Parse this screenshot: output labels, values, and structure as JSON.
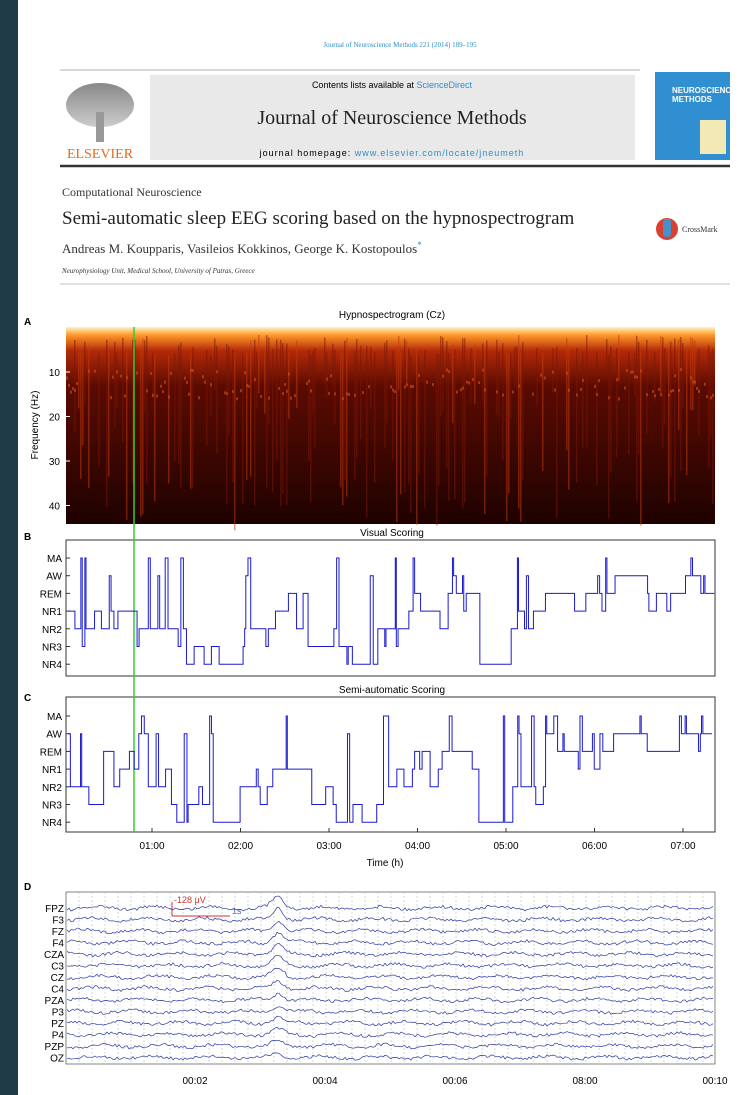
{
  "header": {
    "citation": "Journal of Neuroscience Methods 221 (2014) 189–195",
    "contents_prefix": "Contents lists available at",
    "contents_link": "ScienceDirect",
    "journal": "Journal of Neuroscience Methods",
    "homepage_prefix": "journal homepage:",
    "homepage_link": "www.elsevier.com/locate/jneumeth",
    "publisher": "ELSEVIER",
    "cover_lines": [
      "NEUROSCIENCE",
      "METHODS"
    ]
  },
  "article": {
    "section": "Computational Neuroscience",
    "title": "Semi-automatic sleep EEG scoring based on the hypnospectrogram",
    "authors": "Andreas M. Koupparis, Vasileios Kokkinos, George K. Kostopoulos",
    "author_mark": "*",
    "affiliation": "Neurophysiology Unit, Medical School, University of Patras, Greece",
    "crossmark": "CrossMark"
  },
  "figure": {
    "panel_a": {
      "label": "A",
      "title": "Hypnospectrogram (Cz)",
      "ylabel": "Frequency (Hz)",
      "yticks": [
        "10",
        "20",
        "30",
        "40"
      ]
    },
    "panel_b": {
      "label": "B",
      "title": "Visual Scoring"
    },
    "panel_c": {
      "label": "C",
      "title": "Semi-automatic Scoring",
      "xticks": [
        "01:00",
        "02:00",
        "03:00",
        "04:00",
        "05:00",
        "06:00",
        "07:00"
      ],
      "xlabel": "Time (h)"
    },
    "stages": [
      "MA",
      "AW",
      "REM",
      "NR1",
      "NR2",
      "NR3",
      "NR4"
    ],
    "panel_d": {
      "label": "D",
      "channels": [
        "FPZ",
        "F3",
        "FZ",
        "F4",
        "CZA",
        "C3",
        "CZ",
        "C4",
        "PZA",
        "P3",
        "PZ",
        "P4",
        "PZP",
        "OZ"
      ],
      "scale_amplitude": "-128 μV",
      "scale_time": "1s",
      "xticks": [
        "00:02",
        "00:04",
        "00:06",
        "08:00",
        "00:10"
      ]
    }
  }
}
